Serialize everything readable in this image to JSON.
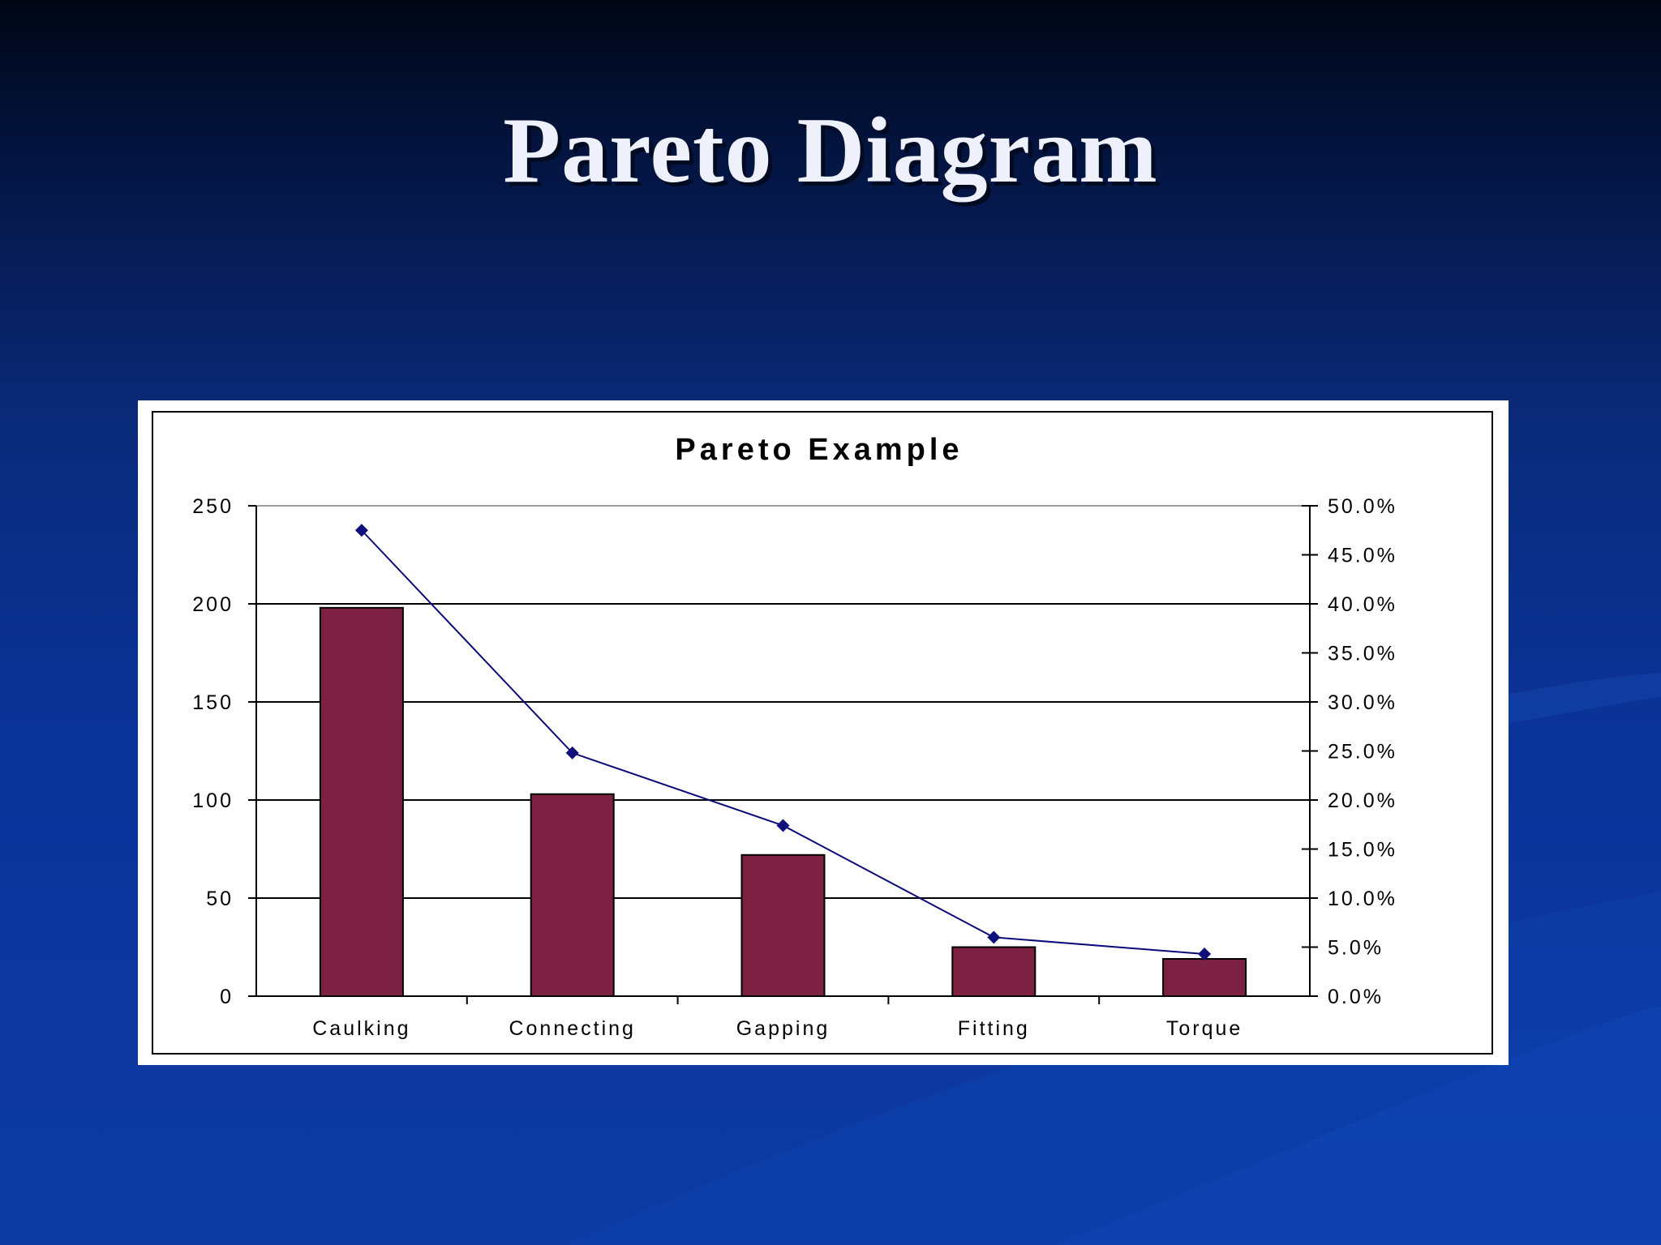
{
  "slide": {
    "title": "Pareto Diagram"
  },
  "colors": {
    "bar_fill": "#7d2142",
    "line": "#0a0a7a",
    "marker": "#10107a"
  },
  "chart_data": {
    "type": "bar",
    "title": "Pareto Example",
    "categories": [
      "Caulking",
      "Connecting",
      "Gapping",
      "Fitting",
      "Torque"
    ],
    "series": [
      {
        "values": [
          198,
          103,
          72,
          25,
          19
        ],
        "axis": "left",
        "kind": "bar"
      },
      {
        "values": [
          47.5,
          24.8,
          17.4,
          6.0,
          4.3
        ],
        "axis": "right",
        "kind": "line",
        "unit": "%"
      }
    ],
    "y_left": {
      "ylim": [
        0,
        250
      ],
      "ticks": [
        0,
        50,
        100,
        150,
        200,
        250
      ],
      "tick_labels": [
        "0",
        "50",
        "100",
        "150",
        "200",
        "250"
      ]
    },
    "y_right": {
      "ylim": [
        0,
        50
      ],
      "ticks": [
        0,
        5,
        10,
        15,
        20,
        25,
        30,
        35,
        40,
        45,
        50
      ],
      "tick_labels": [
        "0.0%",
        "5.0%",
        "10.0%",
        "15.0%",
        "20.0%",
        "25.0%",
        "30.0%",
        "35.0%",
        "40.0%",
        "45.0%",
        "50.0%"
      ]
    },
    "xlabel": "",
    "ylabel": "",
    "grid": true,
    "legend": "none"
  }
}
